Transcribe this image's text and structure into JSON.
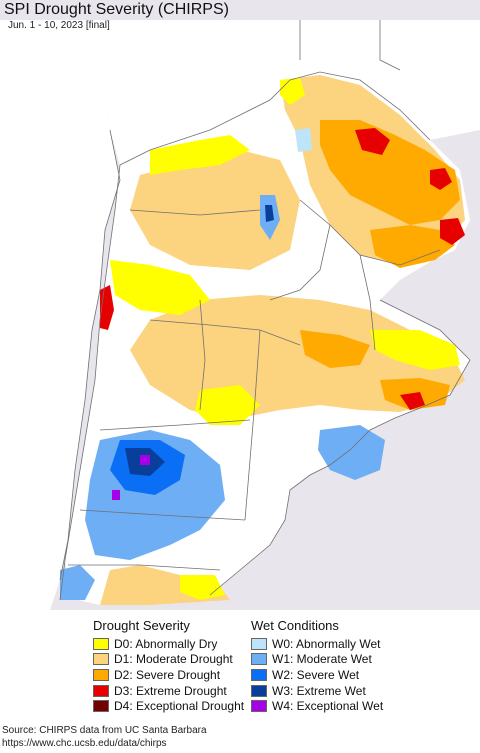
{
  "header": {
    "title": "SPI Drought Severity (CHIRPS)",
    "subtitle": "Jun. 1 - 10, 2023 [final]"
  },
  "colors": {
    "ocean": "#e8e5ed",
    "land_outside": "#ffffff",
    "no_data": "#ffffff",
    "D0": "#ffff00",
    "D1": "#fcd37f",
    "D2": "#ffaa00",
    "D3": "#e60000",
    "D4": "#730000",
    "W0": "#bde4f9",
    "W1": "#6eaef5",
    "W2": "#0a6ff5",
    "W3": "#0a3e9b",
    "W4": "#a800e6",
    "borders": "#707070"
  },
  "legend": {
    "drought": {
      "heading": "Drought Severity",
      "items": [
        {
          "code": "D0",
          "label": "D0: Abnormally Dry",
          "color": "#ffff00"
        },
        {
          "code": "D1",
          "label": "D1: Moderate Drought",
          "color": "#fcd37f"
        },
        {
          "code": "D2",
          "label": "D2: Severe Drought",
          "color": "#ffaa00"
        },
        {
          "code": "D3",
          "label": "D3: Extreme Drought",
          "color": "#e60000"
        },
        {
          "code": "D4",
          "label": "D4: Exceptional Drought",
          "color": "#730000"
        }
      ]
    },
    "wet": {
      "heading": "Wet Conditions",
      "items": [
        {
          "code": "W0",
          "label": "W0: Abnormally Wet",
          "color": "#bde4f9"
        },
        {
          "code": "W1",
          "label": "W1: Moderate Wet",
          "color": "#6eaef5"
        },
        {
          "code": "W2",
          "label": "W2: Severe Wet",
          "color": "#0a6ff5"
        },
        {
          "code": "W3",
          "label": "W3: Extreme Wet",
          "color": "#0a3e9b"
        },
        {
          "code": "W4",
          "label": "W4: Exceptional Wet",
          "color": "#a800e6"
        }
      ]
    }
  },
  "footer": {
    "source": "Source: CHIRPS data from UC Santa Barbara",
    "url": "https://www.chc.ucsb.edu/data/chirps"
  }
}
